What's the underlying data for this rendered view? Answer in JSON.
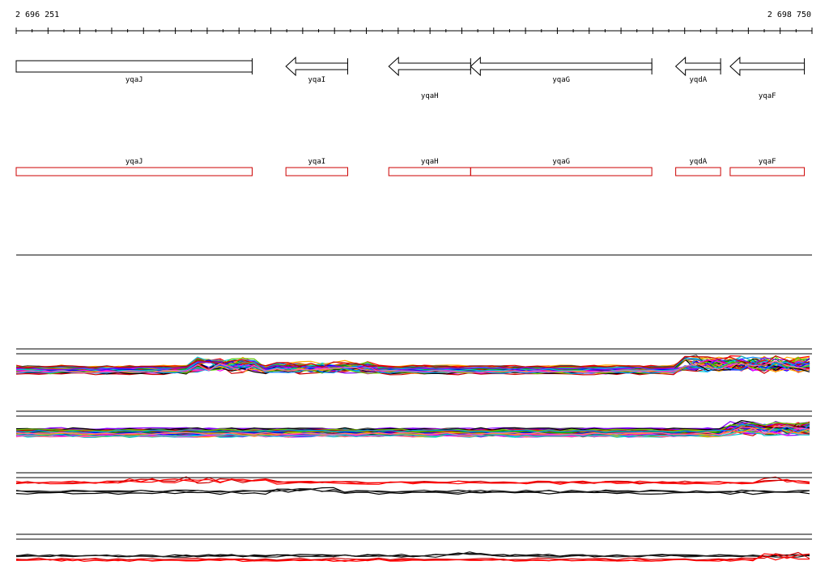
{
  "coords": {
    "start": "2 696 251",
    "end": "2 698 750"
  },
  "genes_top": [
    {
      "name": "yqaJ",
      "start": 2696251,
      "end": 2696992,
      "strand": "+",
      "label_row": 1
    },
    {
      "name": "yqaI",
      "start": 2697098,
      "end": 2697292,
      "strand": "-",
      "label_row": 1
    },
    {
      "name": "yqaH",
      "start": 2697421,
      "end": 2697678,
      "strand": "-",
      "label_row": 2
    },
    {
      "name": "yqaG",
      "start": 2697678,
      "end": 2698247,
      "strand": "-",
      "label_row": 1
    },
    {
      "name": "yqdA",
      "start": 2698322,
      "end": 2698463,
      "strand": "-",
      "label_row": 1
    },
    {
      "name": "yqaF",
      "start": 2698493,
      "end": 2698726,
      "strand": "-",
      "label_row": 2
    }
  ],
  "genes_bottom": [
    {
      "name": "yqaJ",
      "start": 2696251,
      "end": 2696992
    },
    {
      "name": "yqaI",
      "start": 2697098,
      "end": 2697292
    },
    {
      "name": "yqaH",
      "start": 2697421,
      "end": 2697678
    },
    {
      "name": "yqaG",
      "start": 2697678,
      "end": 2698247
    },
    {
      "name": "yqdA",
      "start": 2698322,
      "end": 2698463
    },
    {
      "name": "yqaF",
      "start": 2698493,
      "end": 2698726
    }
  ],
  "track_colors": [
    "#ff0000",
    "#00aa00",
    "#0000ff",
    "#ff00ff",
    "#00cccc",
    "#ffaa00",
    "#8800ff",
    "#000000",
    "#cc0000",
    "#66cc00",
    "#0088ff",
    "#ff66aa",
    "#aaaa00",
    "#444444"
  ],
  "colors": {
    "gene_outline": "#000000",
    "gene_box": "#cc0000"
  }
}
